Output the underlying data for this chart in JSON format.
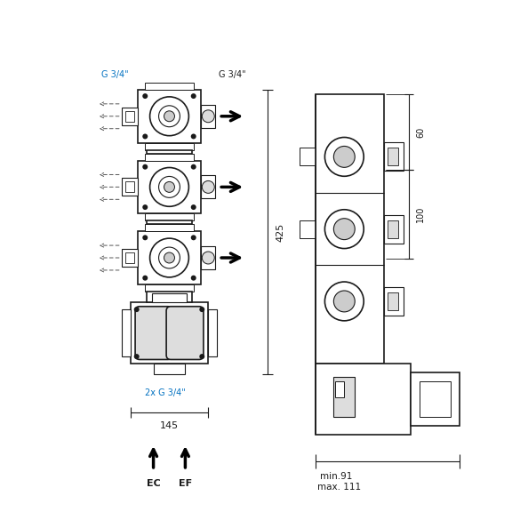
{
  "bg_color": "#ffffff",
  "line_color": "#1a1a1a",
  "dim_color": "#1a1a1a",
  "label_color_blue": "#0070c0",
  "label_color_black": "#1a1a1a",
  "fig_width": 5.85,
  "fig_height": 5.85,
  "dpi": 100,
  "annotations": {
    "g34_left": "G 3/4\"",
    "g34_right": "G 3/4\"",
    "g34_bottom": "2x G 3/4\"",
    "dim_425": "425",
    "dim_145": "145",
    "dim_60": "60",
    "dim_100": "100",
    "dim_min91": "min.91",
    "dim_max111": "max. 111",
    "label_ec": "EC",
    "label_ef": "EF"
  }
}
